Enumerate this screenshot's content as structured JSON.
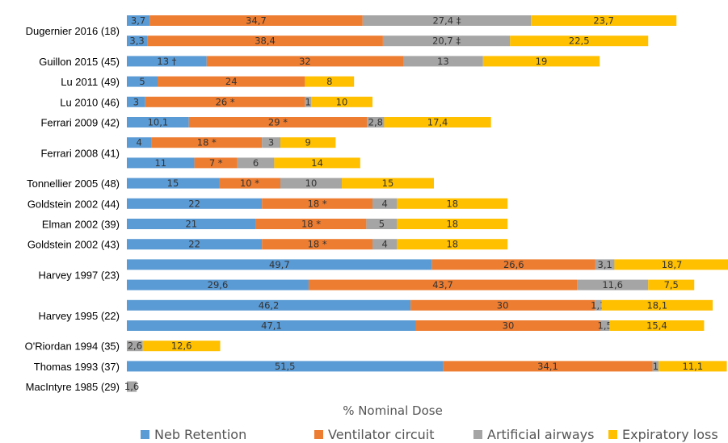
{
  "chart_data": {
    "type": "bar",
    "orientation": "horizontal",
    "stacked": true,
    "xlabel": "% Nominal Dose",
    "xlim": [
      0,
      95
    ],
    "grid": false,
    "legend_position": "bottom",
    "series": [
      {
        "name": "Neb Retention",
        "color": "#5B9BD5"
      },
      {
        "name": "Ventilator circuit",
        "color": "#ED7D31"
      },
      {
        "name": "Artificial airways",
        "color": "#A5A5A5"
      },
      {
        "name": "Expiratory loss",
        "color": "#FFC000"
      }
    ],
    "groups": [
      {
        "label": "Dugernier 2016 (18)",
        "rows": [
          {
            "values": [
              3.7,
              34.7,
              27.4,
              23.7
            ],
            "labels": [
              "3,7",
              "34,7",
              "27,4 ‡",
              "23,7"
            ]
          },
          {
            "values": [
              3.3,
              38.4,
              20.7,
              22.5
            ],
            "labels": [
              "3,3",
              "38,4",
              "20,7 ‡",
              "22,5"
            ]
          }
        ]
      },
      {
        "label": "Guillon 2015 (45)",
        "rows": [
          {
            "values": [
              13,
              32,
              13,
              19
            ],
            "labels": [
              "13 †",
              "32",
              "13",
              "19"
            ]
          }
        ]
      },
      {
        "label": "Lu 2011 (49)",
        "rows": [
          {
            "values": [
              5,
              24,
              0,
              8
            ],
            "labels": [
              "5",
              "24",
              "",
              "8"
            ]
          }
        ]
      },
      {
        "label": "Lu 2010 (46)",
        "rows": [
          {
            "values": [
              3,
              26,
              1,
              10
            ],
            "labels": [
              "3",
              "26 *",
              "1",
              "10"
            ]
          }
        ]
      },
      {
        "label": "Ferrari 2009 (42)",
        "rows": [
          {
            "values": [
              10.1,
              29,
              2.8,
              17.4
            ],
            "labels": [
              "10,1",
              "29 *",
              "2,8",
              "17,4"
            ]
          }
        ]
      },
      {
        "label": "Ferrari 2008 (41)",
        "rows": [
          {
            "values": [
              4,
              18,
              3,
              9
            ],
            "labels": [
              "4",
              "18 *",
              "3",
              "9"
            ]
          },
          {
            "values": [
              11,
              7,
              6,
              14
            ],
            "labels": [
              "11",
              "7 *",
              "6",
              "14"
            ]
          }
        ]
      },
      {
        "label": "Tonnellier 2005 (48)",
        "rows": [
          {
            "values": [
              15,
              10,
              10,
              15
            ],
            "labels": [
              "15",
              "10 *",
              "10",
              "15"
            ]
          }
        ]
      },
      {
        "label": "Goldstein 2002 (44)",
        "rows": [
          {
            "values": [
              22,
              18,
              4,
              18
            ],
            "labels": [
              "22",
              "18 *",
              "4",
              "18"
            ]
          }
        ]
      },
      {
        "label": "Elman 2002 (39)",
        "rows": [
          {
            "values": [
              21,
              18,
              5,
              18
            ],
            "labels": [
              "21",
              "18 *",
              "5",
              "18"
            ]
          }
        ]
      },
      {
        "label": "Goldstein 2002 (43)",
        "rows": [
          {
            "values": [
              22,
              18,
              4,
              18
            ],
            "labels": [
              "22",
              "18 *",
              "4",
              "18"
            ]
          }
        ]
      },
      {
        "label": "Harvey 1997 (23)",
        "rows": [
          {
            "values": [
              49.7,
              26.6,
              3.1,
              18.7
            ],
            "labels": [
              "49,7",
              "26,6",
              "3,1",
              "18,7"
            ]
          },
          {
            "values": [
              29.6,
              43.7,
              11.6,
              7.5
            ],
            "labels": [
              "29,6",
              "43,7",
              "11,6",
              "7,5"
            ]
          }
        ]
      },
      {
        "label": "Harvey 1995 (22)",
        "rows": [
          {
            "values": [
              46.2,
              30,
              1.1,
              18.1
            ],
            "labels": [
              "46,2",
              "30",
              "1,1",
              "18,1"
            ]
          },
          {
            "values": [
              47.1,
              30,
              1.5,
              15.4
            ],
            "labels": [
              "47,1",
              "30",
              "1,5",
              "15,4"
            ]
          }
        ]
      },
      {
        "label": "O'Riordan 1994 (35)",
        "rows": [
          {
            "values": [
              0,
              0,
              2.6,
              12.6
            ],
            "labels": [
              "",
              "",
              "2,6",
              "12,6"
            ]
          }
        ]
      },
      {
        "label": "Thomas 1993 (37)",
        "rows": [
          {
            "values": [
              51.5,
              34.1,
              1,
              11.1
            ],
            "labels": [
              "51,5",
              "34,1",
              "1",
              "11,1"
            ]
          }
        ]
      },
      {
        "label": "MacIntyre 1985 (29)",
        "rows": [
          {
            "values": [
              0,
              0,
              1.6,
              0
            ],
            "labels": [
              "",
              "",
              "1,6",
              ""
            ]
          }
        ]
      }
    ]
  }
}
